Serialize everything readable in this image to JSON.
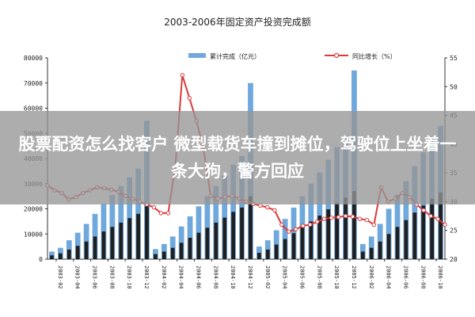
{
  "colors": {
    "bar_light": "#6fa8dc",
    "bar_dark": "#1f1f1f",
    "line": "#d93a3a",
    "axis": "#333333",
    "overlay": "#969696"
  },
  "overlay_text": "股票配资怎么找客户 微型载货车撞到摊位，驾驶位上坐着一条大狗，警方回应",
  "chart_data": {
    "type": "bar",
    "title": "2003-2006年固定资产投资完成额",
    "legend": [
      {
        "name": "累计完成（亿元）",
        "kind": "bar"
      },
      {
        "name": "同比增长（%）",
        "kind": "line"
      }
    ],
    "legend_position": "top",
    "ylim_left": [
      0,
      80000
    ],
    "yticks_left": [
      "80000",
      "70000",
      "60000",
      "50000",
      "40000",
      "30000",
      "20000",
      "10000",
      "0"
    ],
    "ylim_right": [
      20,
      55
    ],
    "yticks_right": [
      "55",
      "50",
      "45",
      "40",
      "35",
      "30",
      "25",
      "20"
    ],
    "x_labels": [
      "2003-02",
      "2003-04",
      "2003-06",
      "2003-08",
      "2003-10",
      "2003-12",
      "2004-02",
      "2004-04",
      "2004-06",
      "2004-08",
      "2004-10",
      "2004-12",
      "2005-02",
      "2005-04",
      "2005-06",
      "2005-08",
      "2005-10",
      "2005-12",
      "2006-02",
      "2006-04",
      "2006-06",
      "2006-08",
      "2006-10"
    ],
    "bars": [
      3000,
      4500,
      7500,
      10500,
      14000,
      18000,
      22000,
      25500,
      29000,
      32500,
      36000,
      55000,
      4000,
      6000,
      9000,
      13000,
      17000,
      21000,
      25000,
      29000,
      33000,
      37500,
      41000,
      70000,
      5000,
      7500,
      11500,
      16000,
      20500,
      25000,
      30000,
      34500,
      39500,
      44500,
      49000,
      75000,
      6000,
      9000,
      14000,
      20000,
      25500,
      31000,
      37000,
      42500,
      48000,
      53000
    ],
    "dark_bars": [
      1500,
      2300,
      3800,
      5300,
      7000,
      9000,
      11000,
      12800,
      14500,
      16300,
      18000,
      21000,
      2000,
      3000,
      4500,
      6500,
      8500,
      10500,
      12500,
      14500,
      16500,
      18800,
      20500,
      25000,
      2500,
      3800,
      5800,
      8000,
      10300,
      12500,
      15000,
      17300,
      19800,
      22300,
      24500,
      27000,
      3000,
      4500,
      7000,
      10000,
      12800,
      15500,
      18500,
      21300,
      24000,
      26500
    ],
    "line_values": [
      32.8,
      32.0,
      31.5,
      30.4,
      30.8,
      31.5,
      32.0,
      32.5,
      32.3,
      32.1,
      31.7,
      31.0,
      30.5,
      30.0,
      29.5,
      29.0,
      28.0,
      28.0,
      36.0,
      52.0,
      48.0,
      44.0,
      39.0,
      31.0,
      30.5,
      30.8,
      31.0,
      30.5,
      30.0,
      29.6,
      29.3,
      29.0,
      28.5,
      26.0,
      24.8,
      25.2,
      25.8,
      26.0,
      26.5,
      27.0,
      27.2,
      27.3,
      27.5,
      27.4,
      27.0,
      26.8,
      26.0,
      32.5,
      30.0,
      30.5,
      31.5,
      30.8,
      29.5,
      28.5,
      27.5,
      27.0,
      26.0
    ]
  }
}
